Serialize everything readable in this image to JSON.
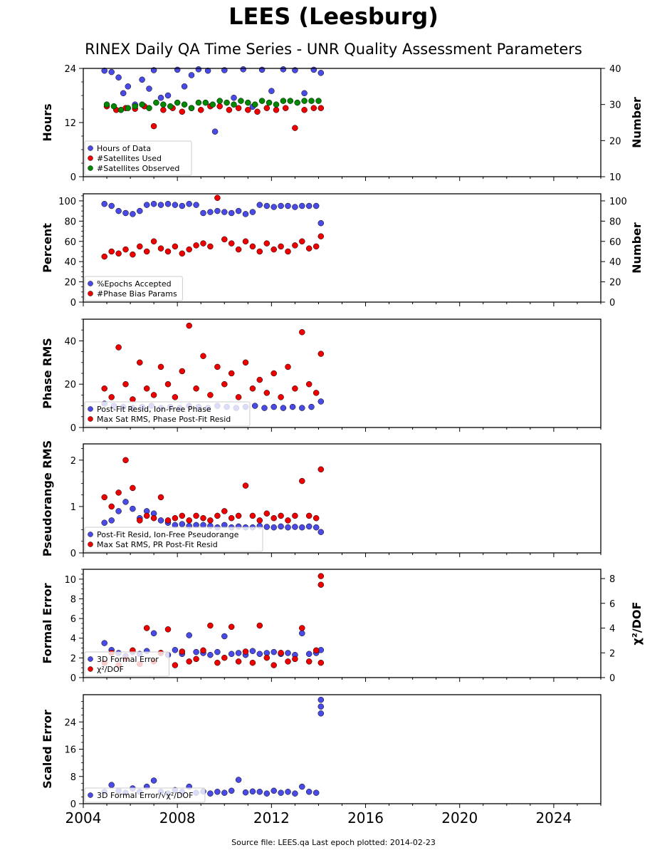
{
  "title": "LEES (Leesburg)",
  "subtitle": "RINEX Daily QA Time Series - UNR Quality Assessment Parameters",
  "footer": "Source file: LEES.qa Last epoch plotted: 2014-02-23",
  "colors": {
    "blue": "#4a4ae6",
    "red": "#ee0000",
    "green": "#008800",
    "edge": "#000000"
  },
  "chart_data": [
    {
      "type": "scatter",
      "ylabel": "Hours",
      "ylabel_right": "Number",
      "ylim": [
        0,
        24
      ],
      "ylim_right": [
        10,
        40
      ],
      "yticks": [
        0,
        12,
        24
      ],
      "yticks_right": [
        10,
        20,
        30,
        40
      ],
      "xlim": [
        2004,
        2026
      ],
      "xticks": [
        2004,
        2008,
        2012,
        2016,
        2020,
        2024
      ],
      "legend": "lower-left",
      "series": [
        {
          "name": "Hours of Data",
          "color": "blue",
          "axis": "left",
          "x": [
            2004.9,
            2005.2,
            2005.5,
            2005.7,
            2005.9,
            2006.2,
            2006.5,
            2006.8,
            2007.0,
            2007.3,
            2007.6,
            2008.0,
            2008.3,
            2008.6,
            2008.9,
            2009.3,
            2009.6,
            2010.0,
            2010.4,
            2010.8,
            2011.2,
            2011.6,
            2012.0,
            2012.5,
            2013.0,
            2013.4,
            2013.8,
            2014.1
          ],
          "y": [
            23.5,
            23.2,
            22.0,
            18.5,
            20.0,
            16.0,
            21.5,
            19.5,
            23.6,
            17.5,
            18.0,
            23.7,
            20.0,
            22.5,
            23.8,
            23.5,
            10.0,
            23.6,
            17.5,
            23.8,
            15.5,
            23.7,
            19.0,
            23.8,
            23.6,
            18.5,
            23.7,
            23.0
          ]
        },
        {
          "name": "#Satellites Used",
          "color": "red",
          "axis": "right",
          "x": [
            2005.0,
            2005.4,
            2005.8,
            2006.2,
            2006.6,
            2007.0,
            2007.4,
            2007.8,
            2008.2,
            2008.6,
            2009.0,
            2009.4,
            2009.8,
            2010.2,
            2010.6,
            2011.0,
            2011.4,
            2011.8,
            2012.2,
            2012.6,
            2013.0,
            2013.4,
            2013.8,
            2014.1
          ],
          "y": [
            29.5,
            28.5,
            29.0,
            28.8,
            29.5,
            24.0,
            28.5,
            29.0,
            28.0,
            29.0,
            28.5,
            29.5,
            29.5,
            28.5,
            29.0,
            28.5,
            28.0,
            29.0,
            28.5,
            29.0,
            23.5,
            28.5,
            29.0,
            29.0
          ]
        },
        {
          "name": "#Satellites Observed",
          "color": "green",
          "axis": "right",
          "x": [
            2005.0,
            2005.3,
            2005.6,
            2005.9,
            2006.2,
            2006.5,
            2006.8,
            2007.1,
            2007.4,
            2007.7,
            2008.0,
            2008.3,
            2008.6,
            2008.9,
            2009.2,
            2009.5,
            2009.8,
            2010.1,
            2010.4,
            2010.7,
            2011.0,
            2011.3,
            2011.6,
            2011.9,
            2012.2,
            2012.5,
            2012.8,
            2013.1,
            2013.4,
            2013.7,
            2014.0
          ],
          "y": [
            30.0,
            29.5,
            28.5,
            29.0,
            29.5,
            30.0,
            29.0,
            30.5,
            30.0,
            29.5,
            30.5,
            30.0,
            29.0,
            30.5,
            30.5,
            30.0,
            31.0,
            30.5,
            30.0,
            31.0,
            30.5,
            30.0,
            31.0,
            30.5,
            30.0,
            31.0,
            31.0,
            30.5,
            31.0,
            31.0,
            31.0
          ]
        }
      ]
    },
    {
      "type": "scatter",
      "ylabel": "Percent",
      "ylabel_right": "Number",
      "ylim": [
        0,
        107
      ],
      "ylim_right": [
        0,
        107
      ],
      "yticks": [
        0,
        20,
        40,
        60,
        80,
        100
      ],
      "yticks_right": [
        0,
        20,
        40,
        60,
        80,
        100
      ],
      "xlim": [
        2004,
        2026
      ],
      "xticks": [
        2004,
        2008,
        2012,
        2016,
        2020,
        2024
      ],
      "legend": "lower-left",
      "series": [
        {
          "name": "%Epochs Accepted",
          "color": "blue",
          "axis": "left",
          "x": [
            2004.9,
            2005.2,
            2005.5,
            2005.8,
            2006.1,
            2006.4,
            2006.7,
            2007.0,
            2007.3,
            2007.6,
            2007.9,
            2008.2,
            2008.5,
            2008.8,
            2009.1,
            2009.4,
            2009.7,
            2010.0,
            2010.3,
            2010.6,
            2010.9,
            2011.2,
            2011.5,
            2011.8,
            2012.1,
            2012.4,
            2012.7,
            2013.0,
            2013.3,
            2013.6,
            2013.9,
            2014.1
          ],
          "y": [
            97,
            95,
            90,
            88,
            87,
            90,
            96,
            97,
            96,
            97,
            96,
            95,
            97,
            96,
            88,
            89,
            90,
            89,
            88,
            90,
            87,
            89,
            96,
            95,
            94,
            95,
            95,
            94,
            95,
            95,
            95,
            78
          ]
        },
        {
          "name": "#Phase Bias Params",
          "color": "red",
          "axis": "right",
          "x": [
            2004.9,
            2005.2,
            2005.5,
            2005.8,
            2006.1,
            2006.4,
            2006.7,
            2007.0,
            2007.3,
            2007.6,
            2007.9,
            2008.2,
            2008.5,
            2008.8,
            2009.1,
            2009.4,
            2009.7,
            2010.0,
            2010.3,
            2010.6,
            2010.9,
            2011.2,
            2011.5,
            2011.8,
            2012.1,
            2012.4,
            2012.7,
            2013.0,
            2013.3,
            2013.6,
            2013.9,
            2014.1
          ],
          "y": [
            45,
            50,
            48,
            52,
            47,
            55,
            50,
            60,
            53,
            50,
            55,
            48,
            52,
            56,
            58,
            55,
            103,
            62,
            58,
            52,
            60,
            55,
            50,
            58,
            52,
            55,
            50,
            56,
            60,
            53,
            55,
            65
          ]
        }
      ]
    },
    {
      "type": "scatter",
      "ylabel": "Phase RMS",
      "ylim": [
        0,
        50
      ],
      "yticks": [
        0,
        20,
        40
      ],
      "xlim": [
        2004,
        2026
      ],
      "xticks": [
        2004,
        2008,
        2012,
        2016,
        2020,
        2024
      ],
      "legend": "lower-left",
      "series": [
        {
          "name": "Post-Fit Resid, Ion-Free Phase",
          "color": "blue",
          "axis": "left",
          "x": [
            2004.9,
            2005.3,
            2005.7,
            2006.1,
            2006.5,
            2006.9,
            2007.3,
            2007.7,
            2008.1,
            2008.5,
            2008.9,
            2009.3,
            2009.7,
            2010.1,
            2010.5,
            2010.9,
            2011.3,
            2011.7,
            2012.1,
            2012.5,
            2012.9,
            2013.3,
            2013.7,
            2014.1
          ],
          "y": [
            11,
            10,
            9.5,
            9,
            9.5,
            10,
            9,
            9.5,
            9,
            10,
            9.5,
            9,
            10,
            9.5,
            9,
            9.5,
            10,
            9,
            9.5,
            9,
            9.5,
            9,
            9.5,
            12
          ]
        },
        {
          "name": "Max Sat RMS, Phase Post-Fit Resid",
          "color": "red",
          "axis": "left",
          "x": [
            2004.9,
            2005.2,
            2005.5,
            2005.8,
            2006.1,
            2006.4,
            2006.7,
            2007.0,
            2007.3,
            2007.6,
            2007.9,
            2008.2,
            2008.5,
            2008.8,
            2009.1,
            2009.4,
            2009.7,
            2010.0,
            2010.3,
            2010.6,
            2010.9,
            2011.2,
            2011.5,
            2011.8,
            2012.1,
            2012.4,
            2012.7,
            2013.0,
            2013.3,
            2013.6,
            2013.9,
            2014.1
          ],
          "y": [
            18,
            14,
            37,
            20,
            13,
            30,
            18,
            15,
            28,
            20,
            14,
            26,
            47,
            18,
            33,
            15,
            28,
            20,
            25,
            14,
            30,
            18,
            22,
            16,
            25,
            14,
            28,
            18,
            44,
            20,
            16,
            34
          ]
        }
      ]
    },
    {
      "type": "scatter",
      "ylabel": "Pseudorange RMS",
      "ylim": [
        0,
        2.35
      ],
      "yticks": [
        0,
        1,
        2
      ],
      "xlim": [
        2004,
        2026
      ],
      "xticks": [
        2004,
        2008,
        2012,
        2016,
        2020,
        2024
      ],
      "legend": "lower-left",
      "series": [
        {
          "name": "Post-Fit Resid, Ion-Free Pseudorange",
          "color": "blue",
          "axis": "left",
          "x": [
            2004.9,
            2005.2,
            2005.5,
            2005.8,
            2006.1,
            2006.4,
            2006.7,
            2007.0,
            2007.3,
            2007.6,
            2007.9,
            2008.2,
            2008.5,
            2008.8,
            2009.1,
            2009.4,
            2009.7,
            2010.0,
            2010.3,
            2010.6,
            2010.9,
            2011.2,
            2011.5,
            2011.8,
            2012.1,
            2012.4,
            2012.7,
            2013.0,
            2013.3,
            2013.6,
            2013.9,
            2014.1
          ],
          "y": [
            0.65,
            0.7,
            0.9,
            1.1,
            0.95,
            0.75,
            0.9,
            0.85,
            0.7,
            0.65,
            0.6,
            0.62,
            0.58,
            0.6,
            0.6,
            0.58,
            0.55,
            0.6,
            0.55,
            0.57,
            0.55,
            0.55,
            0.58,
            0.56,
            0.55,
            0.57,
            0.55,
            0.56,
            0.55,
            0.57,
            0.55,
            0.45
          ]
        },
        {
          "name": "Max Sat RMS, PR Post-Fit Resid",
          "color": "red",
          "axis": "left",
          "x": [
            2004.9,
            2005.2,
            2005.5,
            2005.8,
            2006.1,
            2006.4,
            2006.7,
            2007.0,
            2007.3,
            2007.6,
            2007.9,
            2008.2,
            2008.5,
            2008.8,
            2009.1,
            2009.4,
            2009.7,
            2010.0,
            2010.3,
            2010.6,
            2010.9,
            2011.2,
            2011.5,
            2011.8,
            2012.1,
            2012.4,
            2012.7,
            2013.0,
            2013.3,
            2013.6,
            2013.9,
            2014.1
          ],
          "y": [
            1.2,
            1.0,
            1.3,
            2.0,
            1.4,
            0.7,
            0.8,
            0.75,
            1.2,
            0.7,
            0.75,
            0.8,
            0.7,
            0.8,
            0.75,
            0.7,
            0.8,
            0.9,
            0.75,
            0.8,
            1.45,
            0.8,
            0.7,
            0.85,
            0.75,
            0.8,
            0.7,
            0.8,
            1.55,
            0.8,
            0.75,
            1.8
          ]
        }
      ]
    },
    {
      "type": "scatter",
      "ylabel": "Formal Error",
      "ylabel_right": "χ²/DOF",
      "ylim": [
        0,
        11
      ],
      "ylim_right": [
        0,
        8.75
      ],
      "yticks": [
        0,
        2,
        4,
        6,
        8,
        10
      ],
      "yticks_right": [
        0,
        2,
        4,
        6,
        8
      ],
      "xlim": [
        2004,
        2026
      ],
      "xticks": [
        2004,
        2008,
        2012,
        2016,
        2020,
        2024
      ],
      "legend": "lower-left",
      "series": [
        {
          "name": "3D Formal Error",
          "color": "blue",
          "axis": "left",
          "x": [
            2004.9,
            2005.2,
            2005.5,
            2005.8,
            2006.1,
            2006.4,
            2006.7,
            2007.0,
            2007.3,
            2007.6,
            2007.9,
            2008.2,
            2008.5,
            2008.8,
            2009.1,
            2009.4,
            2009.7,
            2010.0,
            2010.3,
            2010.6,
            2010.9,
            2011.2,
            2011.5,
            2011.8,
            2012.1,
            2012.4,
            2012.7,
            2013.0,
            2013.3,
            2013.6,
            2013.9,
            2014.1
          ],
          "y": [
            3.5,
            2.8,
            2.5,
            2.2,
            2.6,
            2.4,
            2.7,
            4.5,
            2.5,
            2.3,
            2.8,
            2.4,
            4.3,
            2.6,
            2.5,
            2.3,
            2.6,
            4.2,
            2.4,
            2.5,
            2.3,
            2.7,
            2.4,
            2.5,
            2.6,
            2.4,
            2.5,
            2.3,
            4.5,
            2.4,
            2.5,
            2.8
          ]
        },
        {
          "name": "χ²/DOF",
          "color": "red",
          "axis": "right",
          "x": [
            2004.9,
            2005.2,
            2005.5,
            2005.8,
            2006.1,
            2006.4,
            2006.7,
            2007.0,
            2007.3,
            2007.6,
            2007.9,
            2008.2,
            2008.5,
            2008.8,
            2009.1,
            2009.4,
            2009.7,
            2010.0,
            2010.3,
            2010.6,
            2010.9,
            2011.2,
            2011.5,
            2011.8,
            2012.1,
            2012.4,
            2012.7,
            2013.0,
            2013.3,
            2013.6,
            2013.9,
            2014.1,
            2014.1,
            2014.1
          ],
          "y": [
            1.2,
            2.0,
            1.0,
            1.5,
            2.2,
            1.1,
            4.0,
            1.3,
            2.0,
            3.9,
            1.0,
            2.1,
            1.3,
            1.5,
            2.2,
            4.2,
            1.2,
            1.6,
            4.1,
            1.3,
            2.1,
            1.2,
            4.2,
            1.6,
            1.0,
            2.0,
            1.3,
            1.5,
            4.0,
            1.3,
            2.2,
            8.2,
            7.5,
            1.2
          ]
        }
      ]
    },
    {
      "type": "scatter",
      "ylabel": "Scaled Error",
      "ylim": [
        0,
        32
      ],
      "yticks": [
        0,
        8,
        16,
        24
      ],
      "xlim": [
        2004,
        2026
      ],
      "xticks": [
        2004,
        2008,
        2012,
        2016,
        2020,
        2024
      ],
      "xticklabels": [
        "2004",
        "2008",
        "2012",
        "2016",
        "2020",
        "2024"
      ],
      "legend": "lower-left",
      "series": [
        {
          "name": "3D Formal Error/√χ²/DOF",
          "color": "blue",
          "axis": "left",
          "x": [
            2004.9,
            2005.2,
            2005.5,
            2005.8,
            2006.1,
            2006.4,
            2006.7,
            2007.0,
            2007.3,
            2007.6,
            2007.9,
            2008.2,
            2008.5,
            2008.8,
            2009.1,
            2009.4,
            2009.7,
            2010.0,
            2010.3,
            2010.6,
            2010.9,
            2011.2,
            2011.5,
            2011.8,
            2012.1,
            2012.4,
            2012.7,
            2013.0,
            2013.3,
            2013.6,
            2013.9,
            2014.1,
            2014.1,
            2014.1
          ],
          "y": [
            3.5,
            5.5,
            3.8,
            3.2,
            4.5,
            3.5,
            5.0,
            6.8,
            3.5,
            3.0,
            4.0,
            3.5,
            5.0,
            3.2,
            3.6,
            3.0,
            3.5,
            3.2,
            3.8,
            7.0,
            3.3,
            3.6,
            3.5,
            3.0,
            3.8,
            3.2,
            3.5,
            3.0,
            5.0,
            3.5,
            3.2,
            30.5,
            28.5,
            26.5
          ]
        }
      ]
    }
  ]
}
